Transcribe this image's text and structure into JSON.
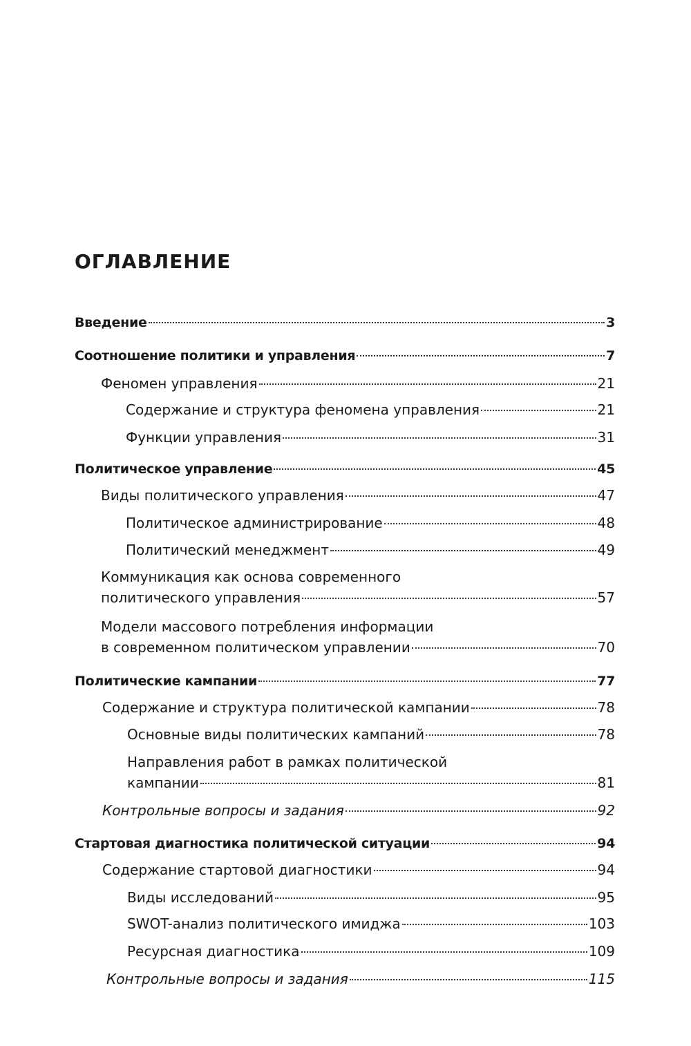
{
  "title": "ОГЛАВЛЕНИЕ",
  "entries": [
    {
      "text": "Введение",
      "page": "3"
    },
    {
      "text": "Соотношение политики и управления",
      "page": "7"
    },
    {
      "text": "Феномен управления",
      "page": "21"
    },
    {
      "text": "Содержание и структура феномена управления",
      "page": "21"
    },
    {
      "text": "Функции управления",
      "page": "31"
    },
    {
      "text": "Политическое управление",
      "page": "45"
    },
    {
      "text": "Виды политического управления",
      "page": "47"
    },
    {
      "text": "Политическое администрирование",
      "page": "48"
    },
    {
      "text": "Политический менеджмент",
      "page": "49"
    },
    {
      "text1": "Коммуникация как основа современного",
      "text": "политического управления",
      "page": "57"
    },
    {
      "text1": "Модели массового потребления информации",
      "text": "в современном политическом управлении",
      "page": "70"
    },
    {
      "text": "Политические кампании",
      "page": "77"
    },
    {
      "text": "Содержание и структура политической кампании",
      "page": "78"
    },
    {
      "text": "Основные виды политических кампаний",
      "page": "78"
    },
    {
      "text1": "Направления работ в рамках политической",
      "text": "кампании",
      "page": "81"
    },
    {
      "text": "Контрольные вопросы и задания",
      "page": "92"
    },
    {
      "text": "Стартовая диагностика политической ситуации",
      "page": "94"
    },
    {
      "text": "Содержание стартовой диагностики",
      "page": "94"
    },
    {
      "text": "Виды исследований",
      "page": "95"
    },
    {
      "text": "SWOT-анализ политического имиджа",
      "page": "103"
    },
    {
      "text": "Ресурсная диагностика",
      "page": "109"
    },
    {
      "text": "Контрольные вопросы и задания",
      "page": "115"
    }
  ]
}
